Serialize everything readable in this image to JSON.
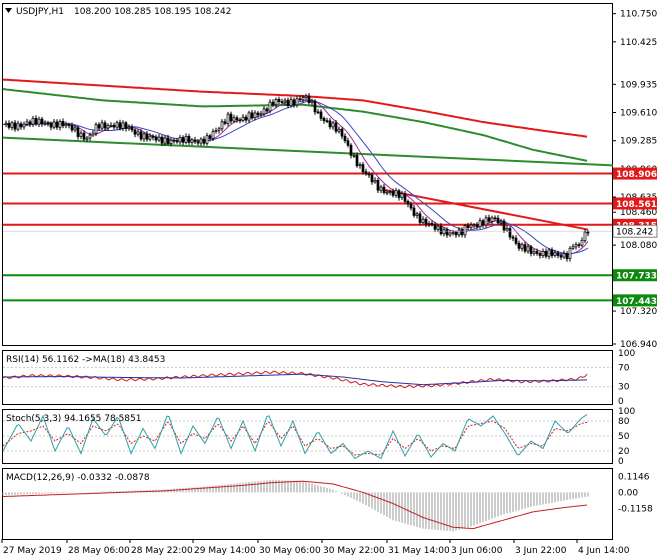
{
  "colors": {
    "background": "#ffffff",
    "grid": "#c8c8c8",
    "candle": "#000000",
    "ma_fast": "#9b2a9b",
    "ma_slow": "#3b47b8",
    "ema_long": "#2e8b2e",
    "resistance": "#e31818",
    "support": "#0b8a0b",
    "rsi": "#d41c1c",
    "rsi_ma": "#1f2fa8",
    "stoch_k": "#2aa0a8",
    "stoch_d": "#d41c1c",
    "macd_hist": "#9a9a9a",
    "macd_signal": "#c21f1f"
  },
  "chart_data": [
    {
      "panel": "price",
      "type": "candlestick",
      "title": "USDJPY,H1",
      "ohlc_header": "108.200 108.285 108.195 108.242",
      "y_ticks": [
        "110.750",
        "110.425",
        "109.935",
        "109.610",
        "109.285",
        "108.960",
        "108.635",
        "108.460",
        "108.080",
        "107.755",
        "107.320",
        "106.940"
      ],
      "y_range": [
        106.94,
        110.85
      ],
      "x_labels": [
        "27 May 2019",
        "28 May 06:00",
        "28 May 22:00",
        "29 May 14:00",
        "30 May 06:00",
        "30 May 22:00",
        "31 May 14:00",
        "3 Jun 06:00",
        "3 Jun 22:00",
        "4 Jun 14:00"
      ],
      "current_price": "108.242",
      "keys": [
        [
          0,
          109.45
        ],
        [
          20,
          109.48
        ],
        [
          40,
          109.5
        ],
        [
          55,
          109.47
        ],
        [
          70,
          109.43
        ],
        [
          85,
          109.3
        ],
        [
          95,
          109.45
        ],
        [
          110,
          109.48
        ],
        [
          125,
          109.42
        ],
        [
          140,
          109.35
        ],
        [
          155,
          109.28
        ],
        [
          170,
          109.3
        ],
        [
          190,
          109.27
        ],
        [
          205,
          109.32
        ],
        [
          215,
          109.4
        ],
        [
          225,
          109.57
        ],
        [
          240,
          109.52
        ],
        [
          255,
          109.6
        ],
        [
          270,
          109.72
        ],
        [
          285,
          109.73
        ],
        [
          300,
          109.78
        ],
        [
          305,
          109.75
        ],
        [
          315,
          109.6
        ],
        [
          330,
          109.45
        ],
        [
          340,
          109.32
        ],
        [
          350,
          109.12
        ],
        [
          362,
          108.9
        ],
        [
          375,
          108.75
        ],
        [
          390,
          108.68
        ],
        [
          400,
          108.62
        ],
        [
          410,
          108.48
        ],
        [
          420,
          108.35
        ],
        [
          430,
          108.28
        ],
        [
          440,
          108.25
        ],
        [
          450,
          108.22
        ],
        [
          458,
          108.2
        ],
        [
          465,
          108.3
        ],
        [
          478,
          108.35
        ],
        [
          492,
          108.37
        ],
        [
          500,
          108.32
        ],
        [
          508,
          108.2
        ],
        [
          515,
          108.05
        ],
        [
          525,
          108.02
        ],
        [
          535,
          108.0
        ],
        [
          545,
          107.98
        ],
        [
          555,
          107.95
        ],
        [
          565,
          107.98
        ],
        [
          570,
          108.1
        ],
        [
          575,
          108.05
        ],
        [
          580,
          108.15
        ],
        [
          585,
          108.24
        ]
      ],
      "ema_long": [
        [
          0,
          109.88
        ],
        [
          100,
          109.75
        ],
        [
          200,
          109.68
        ],
        [
          300,
          109.7
        ],
        [
          360,
          109.62
        ],
        [
          420,
          109.5
        ],
        [
          480,
          109.35
        ],
        [
          530,
          109.18
        ],
        [
          585,
          109.05
        ]
      ],
      "ema_mid": [
        [
          0,
          109.99
        ],
        [
          100,
          109.92
        ],
        [
          200,
          109.85
        ],
        [
          300,
          109.8
        ],
        [
          360,
          109.75
        ],
        [
          420,
          109.63
        ],
        [
          480,
          109.5
        ],
        [
          540,
          109.4
        ],
        [
          585,
          109.33
        ]
      ],
      "trend_lines": [
        {
          "color": "green",
          "points": [
            [
              0,
              109.32
            ],
            [
              610,
              109.0
            ]
          ]
        },
        {
          "color": "red",
          "points": [
            [
              380,
              108.72
            ],
            [
              585,
              108.26
            ]
          ]
        }
      ],
      "levels": [
        {
          "value": 108.906,
          "label": "108.906",
          "color": "red"
        },
        {
          "value": 108.561,
          "label": "108.561",
          "color": "red"
        },
        {
          "value": 108.315,
          "label": "108.315",
          "color": "red"
        },
        {
          "value": 107.733,
          "label": "107.733",
          "color": "green"
        },
        {
          "value": 107.443,
          "label": "107.443",
          "color": "green"
        }
      ]
    },
    {
      "panel": "rsi",
      "type": "line",
      "title": "RSI(14) 56.1162 ->MA(18) 43.8453",
      "y_ticks": [
        "70",
        "30",
        "0",
        "100"
      ],
      "y_range": [
        0,
        100
      ],
      "series": [
        {
          "values": [
            [
              0,
              48
            ],
            [
              30,
              53
            ],
            [
              60,
              52
            ],
            [
              90,
              49
            ],
            [
              120,
              44
            ],
            [
              150,
              46
            ],
            [
              180,
              50
            ],
            [
              210,
              54
            ],
            [
              240,
              57
            ],
            [
              270,
              60
            ],
            [
              300,
              57
            ],
            [
              330,
              48
            ],
            [
              360,
              35
            ],
            [
              400,
              30
            ],
            [
              430,
              32
            ],
            [
              460,
              38
            ],
            [
              490,
              45
            ],
            [
              520,
              40
            ],
            [
              550,
              42
            ],
            [
              575,
              46
            ],
            [
              585,
              56
            ]
          ]
        },
        {
          "values": [
            [
              0,
              50
            ],
            [
              60,
              51
            ],
            [
              120,
              49
            ],
            [
              180,
              48
            ],
            [
              240,
              52
            ],
            [
              300,
              56
            ],
            [
              340,
              50
            ],
            [
              380,
              40
            ],
            [
              420,
              34
            ],
            [
              460,
              38
            ],
            [
              500,
              43
            ],
            [
              540,
              42
            ],
            [
              585,
              44
            ]
          ]
        }
      ]
    },
    {
      "panel": "stochastic",
      "type": "line",
      "title": "Stoch(5,3,3) 94.1655 78.5851",
      "y_ticks": [
        "100",
        "80",
        "50",
        "20",
        "0"
      ],
      "y_range": [
        0,
        100
      ],
      "series": [
        {
          "values": [
            [
              0,
              20
            ],
            [
              15,
              75
            ],
            [
              28,
              40
            ],
            [
              40,
              90
            ],
            [
              52,
              20
            ],
            [
              65,
              70
            ],
            [
              78,
              15
            ],
            [
              90,
              85
            ],
            [
              103,
              50
            ],
            [
              115,
              90
            ],
            [
              128,
              15
            ],
            [
              140,
              65
            ],
            [
              152,
              25
            ],
            [
              165,
              95
            ],
            [
              178,
              15
            ],
            [
              190,
              70
            ],
            [
              202,
              35
            ],
            [
              215,
              90
            ],
            [
              228,
              25
            ],
            [
              240,
              80
            ],
            [
              252,
              20
            ],
            [
              265,
              95
            ],
            [
              278,
              30
            ],
            [
              290,
              80
            ],
            [
              302,
              15
            ],
            [
              315,
              60
            ],
            [
              328,
              15
            ],
            [
              340,
              35
            ],
            [
              352,
              5
            ],
            [
              365,
              20
            ],
            [
              378,
              5
            ],
            [
              390,
              60
            ],
            [
              402,
              10
            ],
            [
              415,
              55
            ],
            [
              428,
              8
            ],
            [
              440,
              35
            ],
            [
              452,
              20
            ],
            [
              465,
              85
            ],
            [
              478,
              70
            ],
            [
              490,
              90
            ],
            [
              502,
              55
            ],
            [
              515,
              10
            ],
            [
              528,
              40
            ],
            [
              540,
              25
            ],
            [
              552,
              80
            ],
            [
              565,
              55
            ],
            [
              578,
              85
            ],
            [
              585,
              94
            ]
          ]
        },
        {
          "values": [
            [
              0,
              30
            ],
            [
              15,
              55
            ],
            [
              28,
              60
            ],
            [
              40,
              70
            ],
            [
              52,
              40
            ],
            [
              65,
              55
            ],
            [
              78,
              35
            ],
            [
              90,
              70
            ],
            [
              103,
              60
            ],
            [
              115,
              75
            ],
            [
              128,
              35
            ],
            [
              140,
              50
            ],
            [
              152,
              40
            ],
            [
              165,
              80
            ],
            [
              178,
              35
            ],
            [
              190,
              55
            ],
            [
              202,
              45
            ],
            [
              215,
              75
            ],
            [
              228,
              40
            ],
            [
              240,
              70
            ],
            [
              252,
              35
            ],
            [
              265,
              80
            ],
            [
              278,
              45
            ],
            [
              290,
              70
            ],
            [
              302,
              30
            ],
            [
              315,
              45
            ],
            [
              328,
              25
            ],
            [
              340,
              30
            ],
            [
              352,
              12
            ],
            [
              365,
              15
            ],
            [
              378,
              12
            ],
            [
              390,
              45
            ],
            [
              402,
              25
            ],
            [
              415,
              45
            ],
            [
              428,
              20
            ],
            [
              440,
              30
            ],
            [
              452,
              25
            ],
            [
              465,
              70
            ],
            [
              478,
              75
            ],
            [
              490,
              80
            ],
            [
              502,
              65
            ],
            [
              515,
              25
            ],
            [
              528,
              35
            ],
            [
              540,
              30
            ],
            [
              552,
              65
            ],
            [
              565,
              60
            ],
            [
              578,
              75
            ],
            [
              585,
              78
            ]
          ]
        }
      ]
    },
    {
      "panel": "macd",
      "type": "histogram+line",
      "title": "MACD(12,26,9) -0.0332 -0.0878",
      "y_ticks": [
        "0.1146",
        "0.00",
        "-0.1158"
      ],
      "y_range": [
        -0.32,
        0.16
      ],
      "histogram": [
        [
          0,
          -0.02
        ],
        [
          40,
          -0.01
        ],
        [
          80,
          0.0
        ],
        [
          120,
          0.01
        ],
        [
          160,
          0.02
        ],
        [
          200,
          0.04
        ],
        [
          240,
          0.07
        ],
        [
          270,
          0.09
        ],
        [
          300,
          0.08
        ],
        [
          330,
          0.02
        ],
        [
          360,
          -0.08
        ],
        [
          390,
          -0.2
        ],
        [
          420,
          -0.26
        ],
        [
          450,
          -0.28
        ],
        [
          470,
          -0.24
        ],
        [
          500,
          -0.16
        ],
        [
          530,
          -0.1
        ],
        [
          560,
          -0.06
        ],
        [
          585,
          -0.03
        ]
      ],
      "signal": [
        [
          0,
          -0.03
        ],
        [
          40,
          -0.02
        ],
        [
          80,
          -0.01
        ],
        [
          120,
          0.0
        ],
        [
          160,
          0.01
        ],
        [
          200,
          0.03
        ],
        [
          240,
          0.05
        ],
        [
          270,
          0.07
        ],
        [
          300,
          0.08
        ],
        [
          330,
          0.06
        ],
        [
          360,
          0.0
        ],
        [
          390,
          -0.08
        ],
        [
          420,
          -0.18
        ],
        [
          450,
          -0.25
        ],
        [
          470,
          -0.26
        ],
        [
          500,
          -0.2
        ],
        [
          530,
          -0.14
        ],
        [
          560,
          -0.11
        ],
        [
          585,
          -0.09
        ]
      ]
    }
  ]
}
